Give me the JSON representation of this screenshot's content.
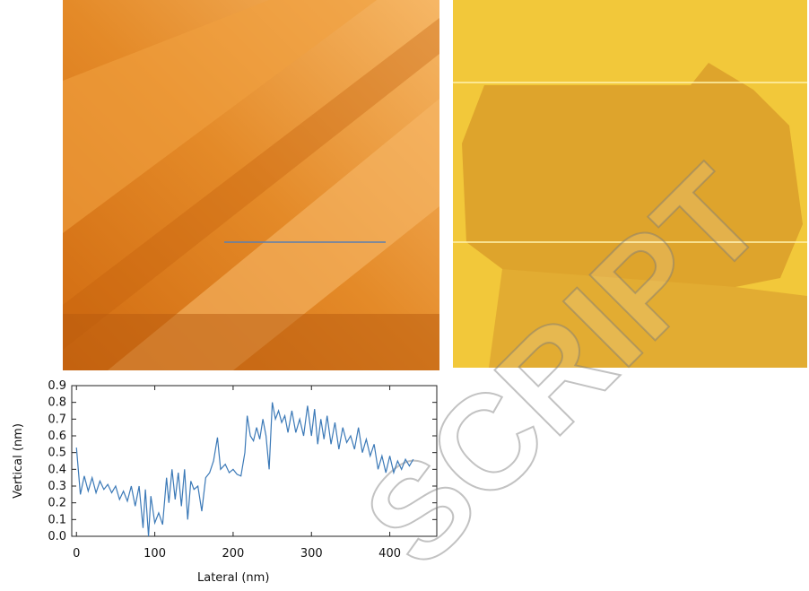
{
  "chart_data": {
    "type": "line",
    "xlabel": "Lateral (nm)",
    "ylabel": "Vertical (nm)",
    "x": [
      0,
      5,
      10,
      15,
      20,
      25,
      30,
      35,
      40,
      45,
      50,
      55,
      60,
      65,
      70,
      75,
      80,
      85,
      88,
      92,
      95,
      100,
      105,
      110,
      115,
      118,
      122,
      126,
      130,
      134,
      138,
      142,
      146,
      150,
      155,
      160,
      165,
      170,
      175,
      180,
      184,
      190,
      195,
      200,
      205,
      210,
      215,
      218,
      222,
      226,
      230,
      234,
      238,
      242,
      246,
      250,
      254,
      258,
      262,
      266,
      270,
      275,
      280,
      285,
      290,
      295,
      300,
      304,
      308,
      312,
      316,
      320,
      325,
      330,
      335,
      340,
      345,
      350,
      355,
      360,
      365,
      370,
      375,
      380,
      385,
      390,
      395,
      400,
      405,
      410,
      415,
      420,
      425,
      430
    ],
    "series": [
      {
        "color": "#3b79b7",
        "values": [
          0.53,
          0.25,
          0.36,
          0.27,
          0.35,
          0.26,
          0.33,
          0.28,
          0.31,
          0.26,
          0.3,
          0.22,
          0.27,
          0.21,
          0.3,
          0.18,
          0.3,
          0.05,
          0.28,
          0.0,
          0.24,
          0.08,
          0.14,
          0.07,
          0.35,
          0.2,
          0.4,
          0.22,
          0.38,
          0.18,
          0.4,
          0.1,
          0.33,
          0.28,
          0.3,
          0.15,
          0.35,
          0.38,
          0.45,
          0.59,
          0.4,
          0.43,
          0.38,
          0.4,
          0.37,
          0.36,
          0.5,
          0.72,
          0.6,
          0.57,
          0.65,
          0.58,
          0.7,
          0.6,
          0.4,
          0.8,
          0.7,
          0.75,
          0.68,
          0.72,
          0.62,
          0.75,
          0.62,
          0.7,
          0.6,
          0.78,
          0.6,
          0.76,
          0.55,
          0.7,
          0.58,
          0.72,
          0.55,
          0.68,
          0.52,
          0.65,
          0.56,
          0.6,
          0.52,
          0.65,
          0.5,
          0.58,
          0.48,
          0.55,
          0.4,
          0.48,
          0.38,
          0.48,
          0.38,
          0.45,
          0.4,
          0.46,
          0.42,
          0.46
        ]
      }
    ],
    "xlim": [
      -6,
      460
    ],
    "ylim": [
      0,
      0.9
    ],
    "xticks": [
      0,
      100,
      200,
      300,
      400
    ],
    "yticks": [
      {
        "value": 0,
        "label": "0.0"
      },
      0.1,
      0.2,
      0.3,
      0.4,
      0.5,
      0.6,
      0.7,
      0.8,
      0.9
    ]
  },
  "watermark": "SCRIPT"
}
